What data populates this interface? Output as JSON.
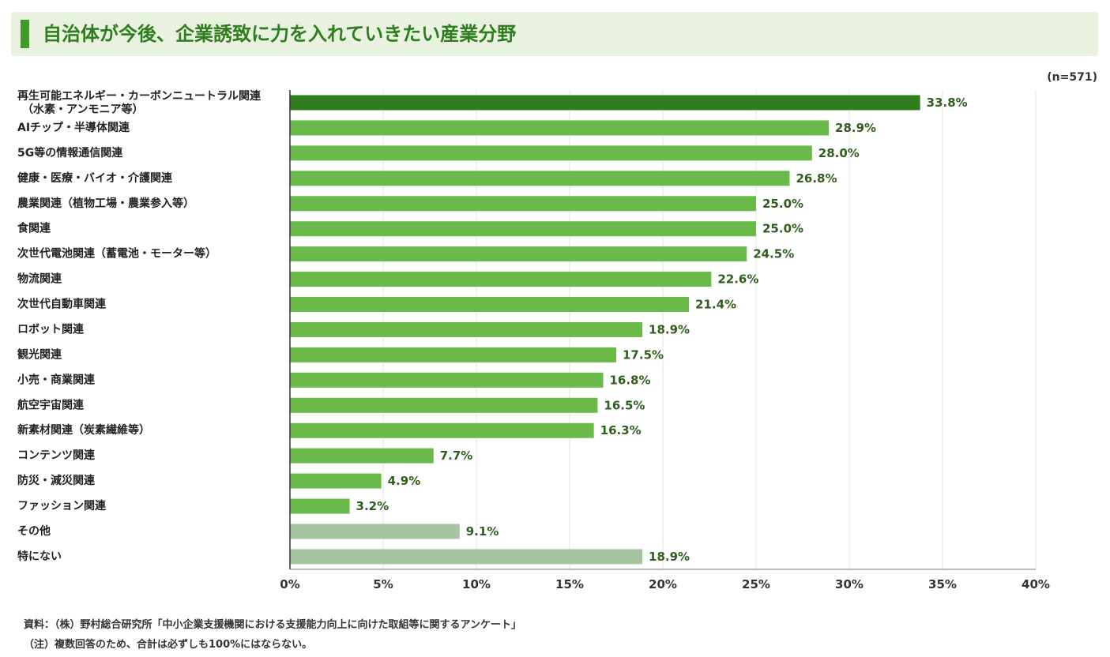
{
  "header": {
    "title": "自治体が今後、企業誘致に力を入れていきたい産業分野"
  },
  "sample_size": "(n=571)",
  "notes": {
    "source": "資料：（株）野村総合研究所「中小企業支援機関における支援能力向上に向けた取組等に関するアンケート」",
    "note": "（注）複数回答のため、合計は必ずしも100%にはならない。"
  },
  "colors": {
    "highlight": "#2e7d1f",
    "main": "#6aba4a",
    "other": "#a6c4a0",
    "value_text": "#2e5e1e"
  },
  "chart_data": {
    "type": "bar",
    "orientation": "horizontal",
    "title": "自治体が今後、企業誘致に力を入れていきたい産業分野",
    "xlim": [
      0,
      40
    ],
    "x_ticks": [
      "0%",
      "5%",
      "10%",
      "15%",
      "20%",
      "25%",
      "30%",
      "35%",
      "40%"
    ],
    "grid": true,
    "categories": [
      [
        "再生可能エネルギー・カーボンニュートラル関連",
        "（水素・アンモニア等）"
      ],
      [
        "AIチップ・半導体関連"
      ],
      [
        "5G等の情報通信関連"
      ],
      [
        "健康・医療・バイオ・介護関連"
      ],
      [
        "農業関連（植物工場・農業参入等）"
      ],
      [
        "食関連"
      ],
      [
        "次世代電池関連（蓄電池・モーター等）"
      ],
      [
        "物流関連"
      ],
      [
        "次世代自動車関連"
      ],
      [
        "ロボット関連"
      ],
      [
        "観光関連"
      ],
      [
        "小売・商業関連"
      ],
      [
        "航空宇宙関連"
      ],
      [
        "新素材関連（炭素繊維等）"
      ],
      [
        "コンテンツ関連"
      ],
      [
        "防災・減災関連"
      ],
      [
        "ファッション関連"
      ],
      [
        "その他"
      ],
      [
        "特にない"
      ]
    ],
    "values": [
      33.8,
      28.9,
      28.0,
      26.8,
      25.0,
      25.0,
      24.5,
      22.6,
      21.4,
      18.9,
      17.5,
      16.8,
      16.5,
      16.3,
      7.7,
      4.9,
      3.2,
      9.1,
      18.9
    ],
    "value_labels": [
      "33.8%",
      "28.9%",
      "28.0%",
      "26.8%",
      "25.0%",
      "25.0%",
      "24.5%",
      "22.6%",
      "21.4%",
      "18.9%",
      "17.5%",
      "16.8%",
      "16.5%",
      "16.3%",
      "7.7%",
      "4.9%",
      "3.2%",
      "9.1%",
      "18.9%"
    ],
    "bar_color_group": [
      "highlight",
      "main",
      "main",
      "main",
      "main",
      "main",
      "main",
      "main",
      "main",
      "main",
      "main",
      "main",
      "main",
      "main",
      "main",
      "main",
      "main",
      "other",
      "other"
    ]
  }
}
